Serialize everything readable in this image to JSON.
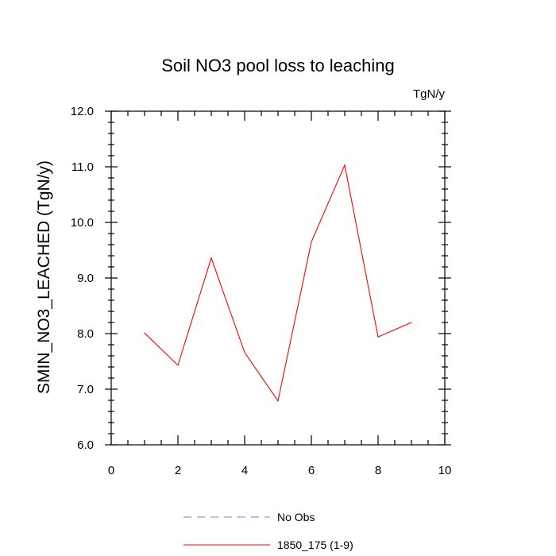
{
  "chart_data": {
    "type": "line",
    "title": "Soil NO3 pool loss to leaching",
    "units_label": "TgN/y",
    "ylabel": "SMIN_NO3_LEACHED  (TgN/y)",
    "xlabel": "",
    "xlim": [
      0,
      10
    ],
    "ylim": [
      6.0,
      12.0
    ],
    "x_ticks": [
      0,
      2,
      4,
      6,
      8,
      10
    ],
    "x_tick_labels": [
      "0",
      "2",
      "4",
      "6",
      "8",
      "10"
    ],
    "y_ticks": [
      6.0,
      7.0,
      8.0,
      9.0,
      10.0,
      11.0,
      12.0
    ],
    "y_tick_labels": [
      "6.0",
      "7.0",
      "8.0",
      "9.0",
      "10.0",
      "11.0",
      "12.0"
    ],
    "grid": false,
    "legend_position": "bottom",
    "series": [
      {
        "name": "No Obs",
        "color": "#7777ee",
        "style": "dashed",
        "x": [],
        "y": []
      },
      {
        "name": "1850_175 (1-9)",
        "color": "#ff0000",
        "style": "solid",
        "x": [
          1,
          2,
          3,
          4,
          5,
          6,
          7,
          8,
          9
        ],
        "y": [
          8.01,
          7.43,
          9.36,
          7.66,
          6.79,
          9.65,
          11.03,
          7.94,
          8.2
        ]
      }
    ]
  }
}
